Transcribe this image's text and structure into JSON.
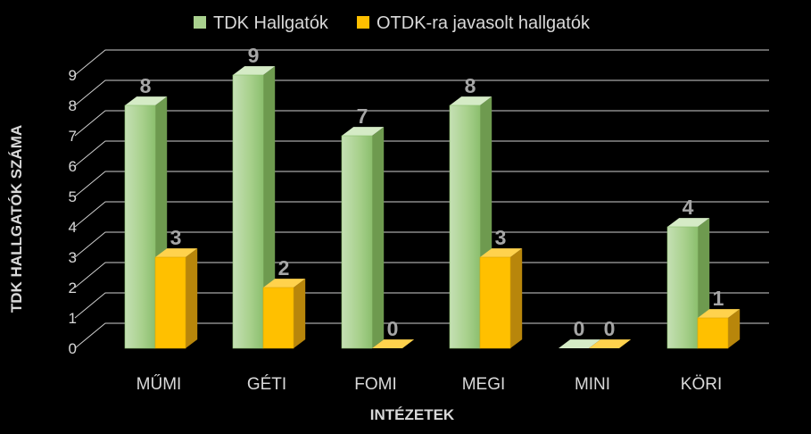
{
  "chart_data": {
    "type": "bar",
    "title": "",
    "categories": [
      "MŰMI",
      "GÉTI",
      "FOMI",
      "MEGI",
      "MINI",
      "KÖRI"
    ],
    "series": [
      {
        "name": "TDK Hallgatók",
        "values": [
          8,
          9,
          7,
          8,
          0,
          4
        ],
        "color": "#a9d18e"
      },
      {
        "name": "OTDK-ra javasolt hallgatók",
        "values": [
          3,
          2,
          0,
          3,
          0,
          1
        ],
        "color": "#ffc000"
      }
    ],
    "xlabel": "INTÉZETEK",
    "ylabel": "TDK HALLGATÓK SZÁMA",
    "ylim": [
      0,
      9
    ],
    "yticks": [
      0,
      1,
      2,
      3,
      4,
      5,
      6,
      7,
      8,
      9
    ],
    "grid": true,
    "legend": "top-center",
    "style": "3d-clustered-column"
  }
}
